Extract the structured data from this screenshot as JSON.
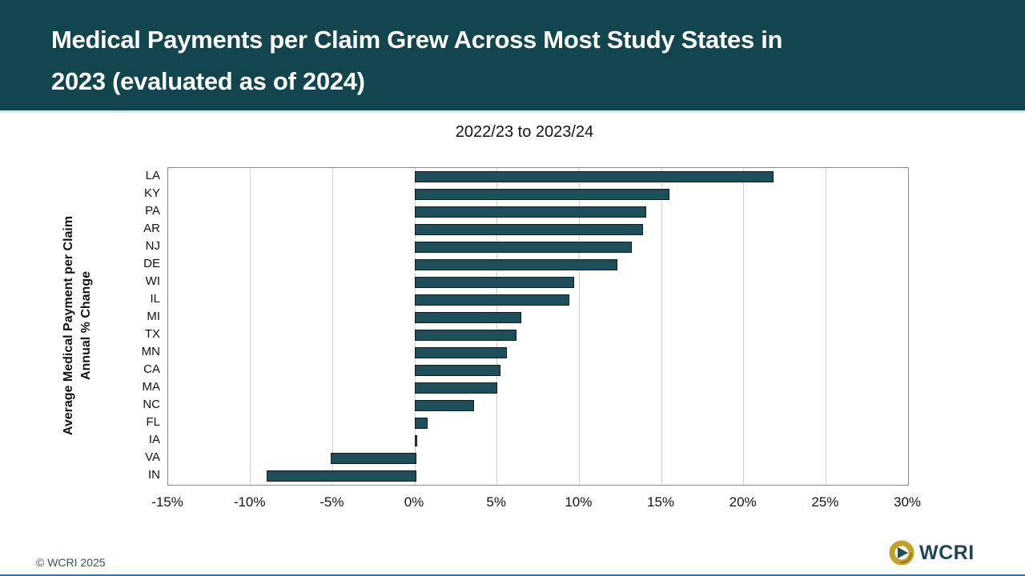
{
  "header": {
    "title_line1": "Medical Payments per Claim Grew Across Most Study States in",
    "title_line2": "2023 (evaluated as of 2024)",
    "bg_color": "#12454E"
  },
  "chart_data": {
    "type": "bar",
    "orientation": "horizontal",
    "title": "2022/23 to 2023/24",
    "ylabel_line1": "Average Medical Payment per Claim",
    "ylabel_line2": "Annual % Change",
    "categories": [
      "LA",
      "KY",
      "PA",
      "AR",
      "NJ",
      "DE",
      "WI",
      "IL",
      "MI",
      "TX",
      "MN",
      "CA",
      "MA",
      "NC",
      "FL",
      "IA",
      "VA",
      "IN"
    ],
    "values": [
      21.7,
      15.4,
      14.0,
      13.8,
      13.1,
      12.2,
      9.6,
      9.3,
      6.4,
      6.1,
      5.5,
      5.1,
      4.9,
      3.5,
      0.7,
      0.0,
      -5.1,
      -9.0
    ],
    "unit": "%",
    "xlim": [
      -15,
      30
    ],
    "x_tick_step": 5,
    "x_tick_labels": [
      "-15%",
      "-10%",
      "-5%",
      "0%",
      "5%",
      "10%",
      "15%",
      "20%",
      "25%",
      "30%"
    ],
    "grid": true,
    "legend": "none",
    "bar_color": "#1E4E59",
    "bar_border_color": "#0E1F24",
    "gridline_color": "#D2D2D2"
  },
  "footer": {
    "copyright": "© WCRI 2025",
    "logo_text": "WCRI",
    "logo_gold": "#C2A128",
    "logo_teal": "#1E4E59",
    "bottom_line_color": "#2E74B5"
  }
}
